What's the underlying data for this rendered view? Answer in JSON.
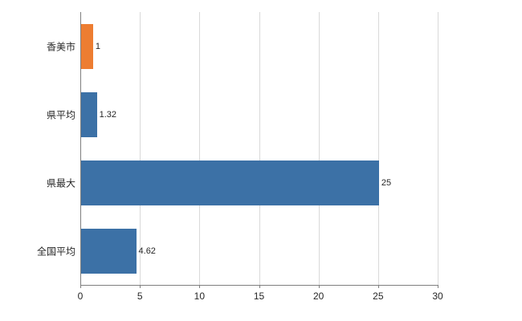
{
  "chart_data": {
    "type": "bar",
    "orientation": "horizontal",
    "title": "",
    "xlabel": "",
    "ylabel": "",
    "categories": [
      "香美市",
      "県平均",
      "県最大",
      "全国平均"
    ],
    "values": [
      1,
      1.32,
      25,
      4.62
    ],
    "value_labels": [
      "1",
      "1.32",
      "25",
      "4.62"
    ],
    "bar_colors": [
      "#ED7D31",
      "#3C71A6",
      "#3C71A6",
      "#3C71A6"
    ],
    "accent_orange": "#ED7D31",
    "accent_blue": "#3C71A6",
    "xlim": [
      0,
      30
    ],
    "x_ticks": [
      0,
      5,
      10,
      15,
      20,
      25,
      30
    ],
    "grid": true,
    "gridline_color": "#d9d9d9",
    "axis_color": "#7f7f7f",
    "legend": false,
    "background": "#ffffff"
  }
}
